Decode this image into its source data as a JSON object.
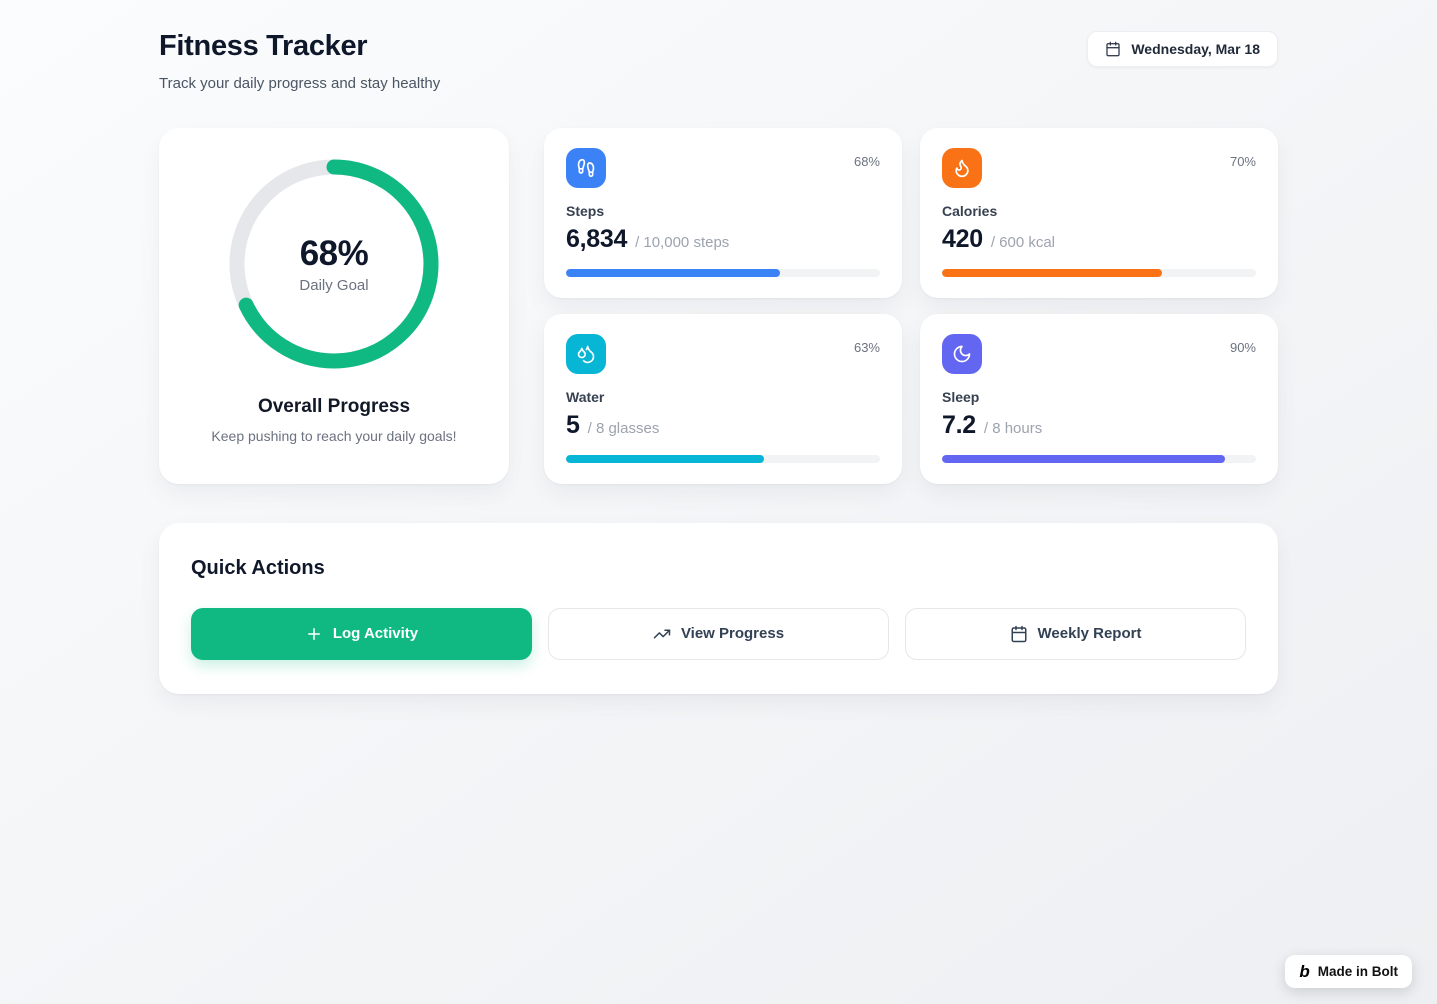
{
  "page": {
    "title": "Fitness Tracker",
    "subtitle": "Track your daily progress and stay healthy",
    "date_button": {
      "label": "Wednesday, Mar 18"
    }
  },
  "overall": {
    "percent_label": "68%",
    "percent_value": 68,
    "center_caption": "Daily Goal",
    "title": "Overall Progress",
    "subtitle": "Keep pushing to reach your daily goals!",
    "ring_color": "#10b981",
    "track_color": "#e5e7eb"
  },
  "stats": [
    {
      "id": "steps",
      "label": "Steps",
      "value": "6,834",
      "target": "/ 10,000 steps",
      "percent_label": "68%",
      "percent_value": 68,
      "color": "#3b82f6"
    },
    {
      "id": "calories",
      "label": "Calories",
      "value": "420",
      "target": "/ 600 kcal",
      "percent_label": "70%",
      "percent_value": 70,
      "color": "#f97316"
    },
    {
      "id": "water",
      "label": "Water",
      "value": "5",
      "target": "/ 8 glasses",
      "percent_label": "63%",
      "percent_value": 63,
      "color": "#06b6d4"
    },
    {
      "id": "sleep",
      "label": "Sleep",
      "value": "7.2",
      "target": "/ 8 hours",
      "percent_label": "90%",
      "percent_value": 90,
      "color": "#6366f1"
    }
  ],
  "quick_actions": {
    "title": "Quick Actions",
    "buttons": [
      {
        "label": "Log Activity",
        "style": "primary",
        "color": "#10b981"
      },
      {
        "label": "View Progress",
        "style": "secondary"
      },
      {
        "label": "Weekly Report",
        "style": "secondary"
      }
    ]
  },
  "badge": {
    "logo": "b",
    "label": "Made in Bolt"
  }
}
